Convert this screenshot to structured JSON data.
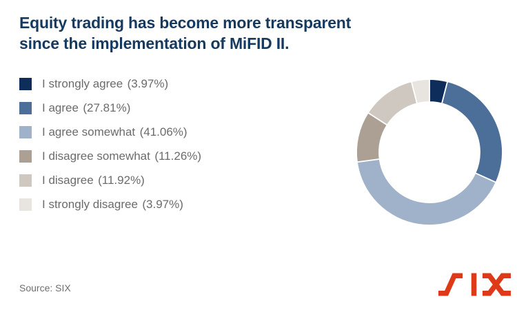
{
  "title": {
    "line1": "Equity trading has become more transparent",
    "line2": "since the implementation of MiFID II."
  },
  "source": "Source: SIX",
  "logo": {
    "name": "SIX",
    "color": "#DE3919"
  },
  "colors": {
    "title": "#16395F",
    "legend_text": "#6B6B6D",
    "background": "#FFFFFF",
    "slice_separator": "#FFFFFF"
  },
  "chart_data": {
    "type": "pie",
    "donut": true,
    "start_angle_deg": 0,
    "direction": "clockwise",
    "legend_position": "left",
    "title": "Equity trading has become more transparent since the implementation of MiFID II.",
    "categories": [
      "I strongly agree",
      "I agree",
      "I agree somewhat",
      "I disagree somewhat",
      "I disagree",
      "I strongly disagree"
    ],
    "values": [
      3.97,
      27.81,
      41.06,
      11.26,
      11.92,
      3.97
    ],
    "slices": [
      {
        "label": "I strongly agree",
        "value": 3.97,
        "pct_label": "(3.97%)",
        "color": "#0E2D5B"
      },
      {
        "label": "I agree",
        "value": 27.81,
        "pct_label": "(27.81%)",
        "color": "#4C6F99"
      },
      {
        "label": "I agree somewhat",
        "value": 41.06,
        "pct_label": "(41.06%)",
        "color": "#9FB2C9"
      },
      {
        "label": "I disagree somewhat",
        "value": 11.26,
        "pct_label": "(11.26%)",
        "color": "#ABA093"
      },
      {
        "label": "I disagree",
        "value": 11.92,
        "pct_label": "(11.92%)",
        "color": "#CFC8C0"
      },
      {
        "label": "I strongly disagree",
        "value": 3.97,
        "pct_label": "(3.97%)",
        "color": "#E8E5E1"
      }
    ]
  }
}
